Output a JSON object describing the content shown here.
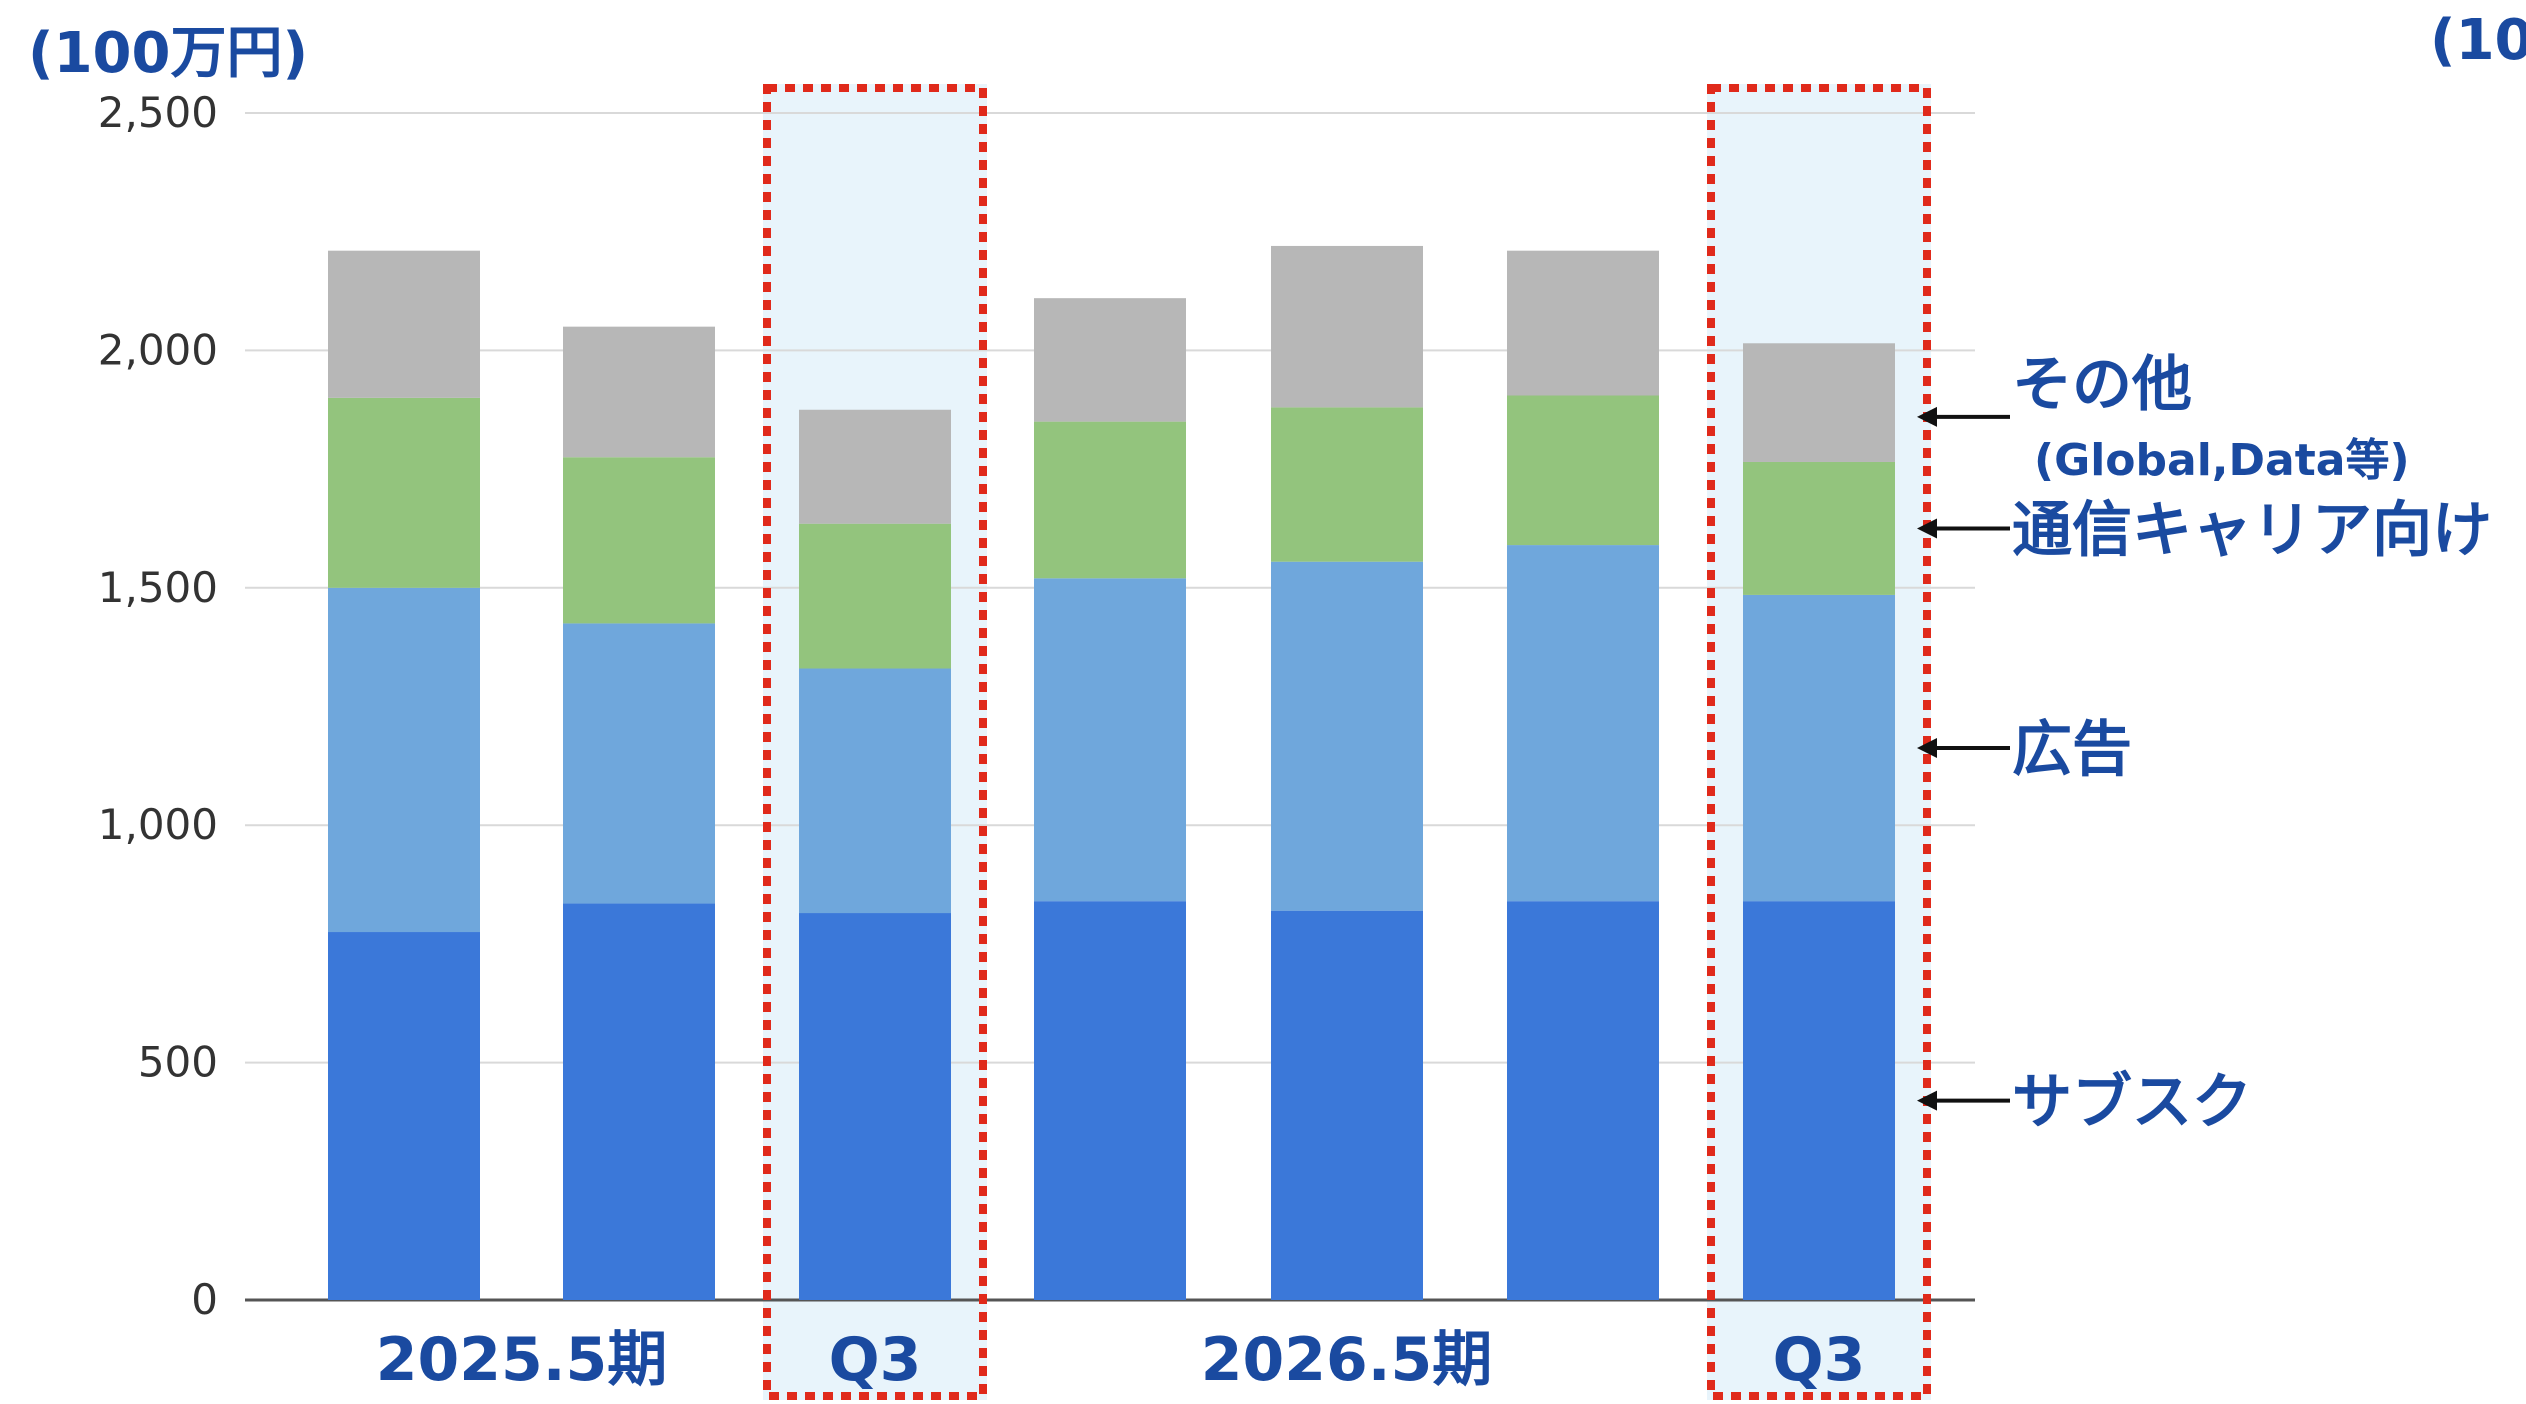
{
  "colors": {
    "subscription": "#3b78d9",
    "ad": "#6fa7dc",
    "carrier": "#93c47d",
    "other": "#b7b7b7",
    "highlight_bg": "#e8f4fb",
    "highlight_border": "#e02a1b",
    "label": "#1a4aa0",
    "axis_text": "#333333",
    "grid": "#d9d9d9"
  },
  "units": {
    "left": "(100万円)",
    "right": "(10"
  },
  "chart_data": {
    "type": "bar",
    "stacked": true,
    "ylim": [
      0,
      2500
    ],
    "yticks": [
      0,
      500,
      1000,
      1500,
      2000,
      2500
    ],
    "ytick_labels": [
      "0",
      "500",
      "1,000",
      "1,500",
      "2,000",
      "2,500"
    ],
    "grid": true,
    "groups": [
      {
        "label": "2025.5期",
        "from": 0,
        "to": 1
      },
      {
        "label": "Q3",
        "from": 2,
        "to": 2,
        "highlight": true
      },
      {
        "label": "2026.5期",
        "from": 3,
        "to": 5
      },
      {
        "label": "Q3",
        "from": 6,
        "to": 6,
        "highlight": true
      }
    ],
    "series": [
      {
        "name": "サブスク",
        "key": "subscription",
        "values": [
          775,
          835,
          815,
          840,
          820,
          840,
          840
        ]
      },
      {
        "name": "広告",
        "key": "ad",
        "values": [
          725,
          590,
          515,
          680,
          735,
          750,
          645
        ]
      },
      {
        "name": "通信キャリア向け",
        "key": "carrier",
        "values": [
          400,
          350,
          305,
          330,
          325,
          315,
          280
        ]
      },
      {
        "name": "その他",
        "sublabel": "(Global,Data等)",
        "key": "other",
        "values": [
          310,
          275,
          240,
          260,
          340,
          305,
          250
        ]
      }
    ]
  }
}
